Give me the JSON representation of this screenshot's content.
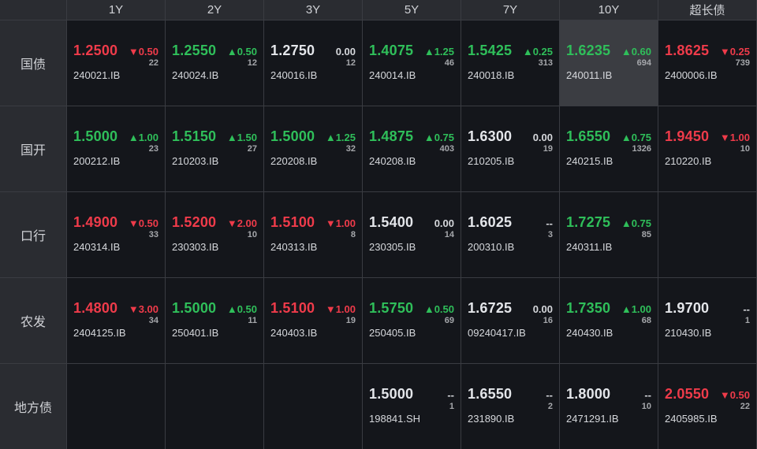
{
  "columns": [
    "1Y",
    "2Y",
    "3Y",
    "5Y",
    "7Y",
    "10Y",
    "超长债"
  ],
  "rows": [
    {
      "label": "国债",
      "cells": [
        {
          "yield": "1.2500",
          "change": "▼0.50",
          "count": "22",
          "code": "240021.IB",
          "dir": "down"
        },
        {
          "yield": "1.2550",
          "change": "▲0.50",
          "count": "12",
          "code": "240024.IB",
          "dir": "up"
        },
        {
          "yield": "1.2750",
          "change": "0.00",
          "count": "12",
          "code": "240016.IB",
          "dir": "flat"
        },
        {
          "yield": "1.4075",
          "change": "▲1.25",
          "count": "46",
          "code": "240014.IB",
          "dir": "up"
        },
        {
          "yield": "1.5425",
          "change": "▲0.25",
          "count": "313",
          "code": "240018.IB",
          "dir": "up"
        },
        {
          "yield": "1.6235",
          "change": "▲0.60",
          "count": "694",
          "code": "240011.IB",
          "dir": "up",
          "highlight": true
        },
        {
          "yield": "1.8625",
          "change": "▼0.25",
          "count": "739",
          "code": "2400006.IB",
          "dir": "down"
        }
      ]
    },
    {
      "label": "国开",
      "cells": [
        {
          "yield": "1.5000",
          "change": "▲1.00",
          "count": "23",
          "code": "200212.IB",
          "dir": "up"
        },
        {
          "yield": "1.5150",
          "change": "▲1.50",
          "count": "27",
          "code": "210203.IB",
          "dir": "up"
        },
        {
          "yield": "1.5000",
          "change": "▲1.25",
          "count": "32",
          "code": "220208.IB",
          "dir": "up"
        },
        {
          "yield": "1.4875",
          "change": "▲0.75",
          "count": "403",
          "code": "240208.IB",
          "dir": "up"
        },
        {
          "yield": "1.6300",
          "change": "0.00",
          "count": "19",
          "code": "210205.IB",
          "dir": "flat"
        },
        {
          "yield": "1.6550",
          "change": "▲0.75",
          "count": "1326",
          "code": "240215.IB",
          "dir": "up"
        },
        {
          "yield": "1.9450",
          "change": "▼1.00",
          "count": "10",
          "code": "210220.IB",
          "dir": "down"
        }
      ]
    },
    {
      "label": "口行",
      "cells": [
        {
          "yield": "1.4900",
          "change": "▼0.50",
          "count": "33",
          "code": "240314.IB",
          "dir": "down"
        },
        {
          "yield": "1.5200",
          "change": "▼2.00",
          "count": "10",
          "code": "230303.IB",
          "dir": "down"
        },
        {
          "yield": "1.5100",
          "change": "▼1.00",
          "count": "8",
          "code": "240313.IB",
          "dir": "down"
        },
        {
          "yield": "1.5400",
          "change": "0.00",
          "count": "14",
          "code": "230305.IB",
          "dir": "flat"
        },
        {
          "yield": "1.6025",
          "change": "--",
          "count": "3",
          "code": "200310.IB",
          "dir": "flat"
        },
        {
          "yield": "1.7275",
          "change": "▲0.75",
          "count": "85",
          "code": "240311.IB",
          "dir": "up"
        },
        null
      ]
    },
    {
      "label": "农发",
      "cells": [
        {
          "yield": "1.4800",
          "change": "▼3.00",
          "count": "34",
          "code": "2404125.IB",
          "dir": "down"
        },
        {
          "yield": "1.5000",
          "change": "▲0.50",
          "count": "11",
          "code": "250401.IB",
          "dir": "up"
        },
        {
          "yield": "1.5100",
          "change": "▼1.00",
          "count": "19",
          "code": "240403.IB",
          "dir": "down"
        },
        {
          "yield": "1.5750",
          "change": "▲0.50",
          "count": "69",
          "code": "250405.IB",
          "dir": "up"
        },
        {
          "yield": "1.6725",
          "change": "0.00",
          "count": "16",
          "code": "09240417.IB",
          "dir": "flat"
        },
        {
          "yield": "1.7350",
          "change": "▲1.00",
          "count": "68",
          "code": "240430.IB",
          "dir": "up"
        },
        {
          "yield": "1.9700",
          "change": "--",
          "count": "1",
          "code": "210430.IB",
          "dir": "flat"
        }
      ]
    },
    {
      "label": "地方债",
      "cells": [
        null,
        null,
        null,
        {
          "yield": "1.5000",
          "change": "--",
          "count": "1",
          "code": "198841.SH",
          "dir": "flat"
        },
        {
          "yield": "1.6550",
          "change": "--",
          "count": "2",
          "code": "231890.IB",
          "dir": "flat"
        },
        {
          "yield": "1.8000",
          "change": "--",
          "count": "10",
          "code": "2471291.IB",
          "dir": "flat"
        },
        {
          "yield": "2.0550",
          "change": "▼0.50",
          "count": "22",
          "code": "2405985.IB",
          "dir": "down"
        }
      ]
    }
  ],
  "colors": {
    "up": "#2fbf5a",
    "down": "#ef3b4a",
    "flat": "#e4e6ea",
    "highlight": "#3b3d42"
  }
}
